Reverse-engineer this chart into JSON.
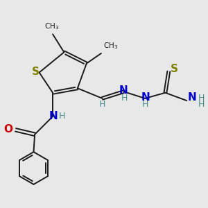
{
  "bg_color": "#e8e8e8",
  "bond_color": "#1a1a1a",
  "colors": {
    "S": "#808000",
    "N": "#0000cc",
    "O": "#cc0000",
    "H": "#4a9090",
    "C": "#1a1a1a"
  }
}
